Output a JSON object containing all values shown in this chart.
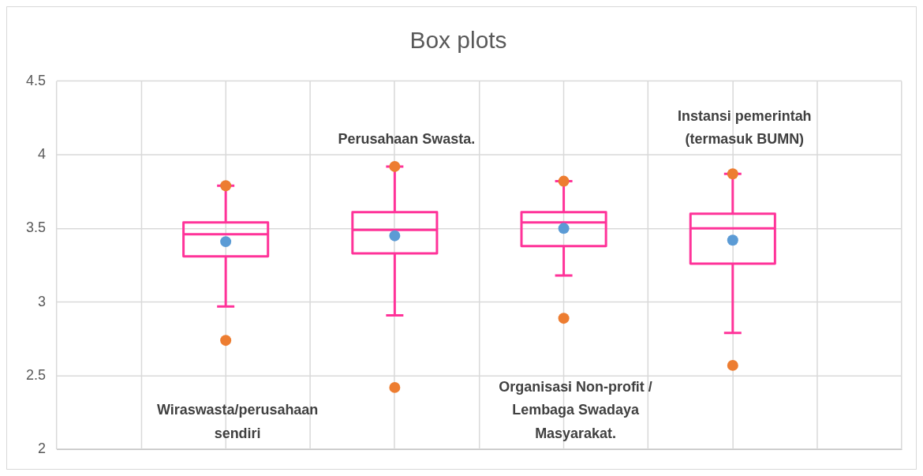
{
  "chart_data": {
    "type": "box",
    "title": "Box plots",
    "categories": [
      "Wiraswasta/perusahaan sendiri",
      "Perusahaan Swasta.",
      "Organisasi Non-profit / Lembaga Swadaya Masyarakat.",
      "Instansi pemerintah (termasuk BUMN)"
    ],
    "ylim": [
      2,
      4.5
    ],
    "yticks": [
      2,
      2.5,
      3,
      3.5,
      4,
      4.5
    ],
    "grid": true,
    "legend": false,
    "marker": "circle",
    "series": [
      {
        "type": "box",
        "color": "#ff3399",
        "boxes": [
          {
            "low": 2.97,
            "q1": 3.31,
            "median": 3.46,
            "q3": 3.54,
            "high": 3.79
          },
          {
            "low": 2.91,
            "q1": 3.33,
            "median": 3.49,
            "q3": 3.61,
            "high": 3.92
          },
          {
            "low": 3.18,
            "q1": 3.38,
            "median": 3.54,
            "q3": 3.61,
            "high": 3.82
          },
          {
            "low": 2.79,
            "q1": 3.26,
            "median": 3.5,
            "q3": 3.6,
            "high": 3.87
          }
        ]
      },
      {
        "type": "scatter",
        "color": "#ed7d31",
        "x": [
          "Wiraswasta/perusahaan sendiri",
          "Wiraswasta/perusahaan sendiri",
          "Perusahaan Swasta.",
          "Perusahaan Swasta.",
          "Organisasi Non-profit / Lembaga Swadaya Masyarakat.",
          "Organisasi Non-profit / Lembaga Swadaya Masyarakat.",
          "Instansi pemerintah (termasuk BUMN)",
          "Instansi pemerintah (termasuk BUMN)"
        ],
        "values": [
          3.79,
          2.74,
          3.92,
          2.42,
          3.82,
          2.89,
          3.87,
          2.57
        ]
      },
      {
        "type": "scatter",
        "color": "#5b9bd5",
        "x": [
          "Wiraswasta/perusahaan sendiri",
          "Perusahaan Swasta.",
          "Organisasi Non-profit / Lembaga Swadaya Masyarakat.",
          "Instansi pemerintah (termasuk BUMN)"
        ],
        "values": [
          3.41,
          3.45,
          3.5,
          3.42
        ]
      }
    ]
  }
}
